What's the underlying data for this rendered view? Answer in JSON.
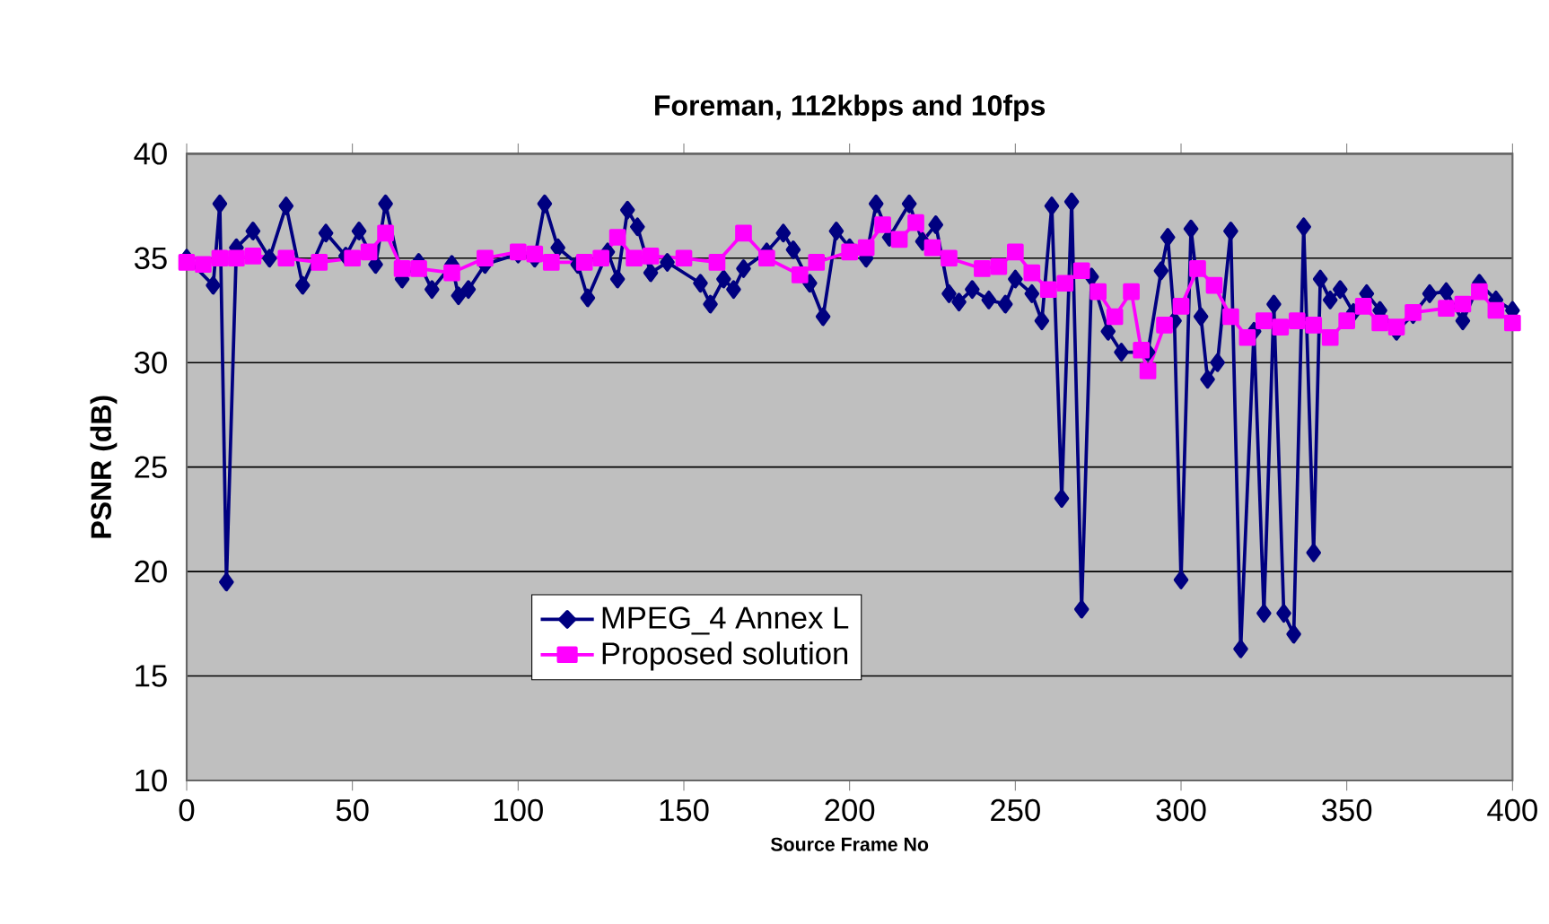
{
  "chart_data": {
    "type": "line",
    "title": "Foreman, 112kbps and 10fps",
    "xlabel": "Source Frame No",
    "ylabel": "PSNR (dB)",
    "xlim": [
      0,
      400
    ],
    "xticks": [
      0,
      50,
      100,
      150,
      200,
      250,
      300,
      350,
      400
    ],
    "ylim": [
      10,
      40
    ],
    "yticks": [
      10,
      15,
      20,
      25,
      30,
      35,
      40
    ],
    "grid": "y",
    "legend": "bottom left",
    "series": [
      {
        "name": "MPEG_4 Annex L",
        "color": "#000080",
        "marker": "diamond",
        "x": [
          0,
          8,
          10,
          12,
          15,
          20,
          25,
          30,
          35,
          42,
          48,
          52,
          57,
          60,
          65,
          70,
          74,
          80,
          82,
          85,
          90,
          100,
          105,
          108,
          112,
          118,
          121,
          127,
          130,
          133,
          136,
          140,
          145,
          150,
          155,
          158,
          162,
          165,
          168,
          175,
          180,
          183,
          188,
          192,
          196,
          200,
          205,
          208,
          212,
          218,
          222,
          226,
          230,
          233,
          237,
          242,
          247,
          250,
          255,
          258,
          261,
          264,
          267,
          270,
          273,
          278,
          282,
          290,
          294,
          296,
          298,
          300,
          303,
          306,
          308,
          311,
          315,
          318,
          322,
          325,
          328,
          331,
          334,
          337,
          340,
          342,
          345,
          348,
          352,
          356,
          360,
          365,
          370,
          375,
          380,
          385,
          390,
          395,
          400
        ],
        "values": [
          35,
          33.7,
          37.6,
          19.5,
          35.5,
          36.3,
          35,
          37.5,
          33.7,
          36.2,
          35.1,
          36.3,
          34.7,
          37.6,
          34,
          34.8,
          33.5,
          34.7,
          33.2,
          33.5,
          34.7,
          35.2,
          35,
          37.6,
          35.5,
          34.7,
          33.1,
          35.3,
          34,
          37.3,
          36.5,
          34.3,
          34.8,
          null,
          33.8,
          32.8,
          34,
          33.5,
          34.5,
          35.3,
          36.2,
          35.4,
          33.8,
          32.2,
          36.3,
          35.5,
          35,
          37.6,
          36,
          37.6,
          35.8,
          36.6,
          33.3,
          32.9,
          33.5,
          33,
          32.8,
          34,
          33.3,
          32,
          37.5,
          23.5,
          37.7,
          18.2,
          34.1,
          31.5,
          30.5,
          30.5,
          34.4,
          36,
          32,
          19.6,
          36.4,
          32.2,
          29.2,
          30,
          36.3,
          16.3,
          31.5,
          18,
          32.8,
          18,
          17,
          36.5,
          20.9,
          34,
          33,
          33.5,
          32.4,
          33.3,
          32.5,
          31.5,
          32.3,
          33.3,
          33.4,
          32,
          33.8,
          33,
          32.5
        ]
      },
      {
        "name": "Proposed solution",
        "color": "#ff00ff",
        "marker": "square",
        "x": [
          0,
          5,
          10,
          15,
          20,
          30,
          40,
          50,
          55,
          60,
          65,
          70,
          80,
          90,
          100,
          105,
          110,
          120,
          125,
          130,
          135,
          140,
          150,
          160,
          168,
          175,
          185,
          190,
          200,
          205,
          210,
          215,
          220,
          225,
          230,
          240,
          245,
          250,
          255,
          260,
          265,
          270,
          275,
          280,
          285,
          288,
          290,
          295,
          300,
          305,
          310,
          315,
          320,
          325,
          330,
          335,
          340,
          345,
          350,
          355,
          360,
          365,
          370,
          380,
          385,
          390,
          395,
          400
        ],
        "values": [
          34.8,
          34.7,
          35,
          35,
          35.1,
          35,
          34.8,
          35,
          35.3,
          36.2,
          34.5,
          34.5,
          34.3,
          35,
          35.3,
          35.2,
          34.8,
          34.8,
          35,
          36,
          35,
          35.1,
          35,
          34.8,
          36.2,
          35,
          34.2,
          34.8,
          35.3,
          35.5,
          36.6,
          35.9,
          36.7,
          35.5,
          35,
          34.5,
          34.6,
          35.3,
          34.3,
          33.5,
          33.8,
          34.4,
          33.4,
          32.2,
          33.4,
          30.6,
          29.6,
          31.8,
          32.7,
          34.5,
          33.7,
          32.2,
          31.2,
          32,
          31.7,
          32,
          31.8,
          31.2,
          32,
          32.7,
          31.9,
          31.7,
          32.4,
          32.6,
          32.8,
          33.4,
          32.5,
          31.9
        ]
      }
    ]
  }
}
